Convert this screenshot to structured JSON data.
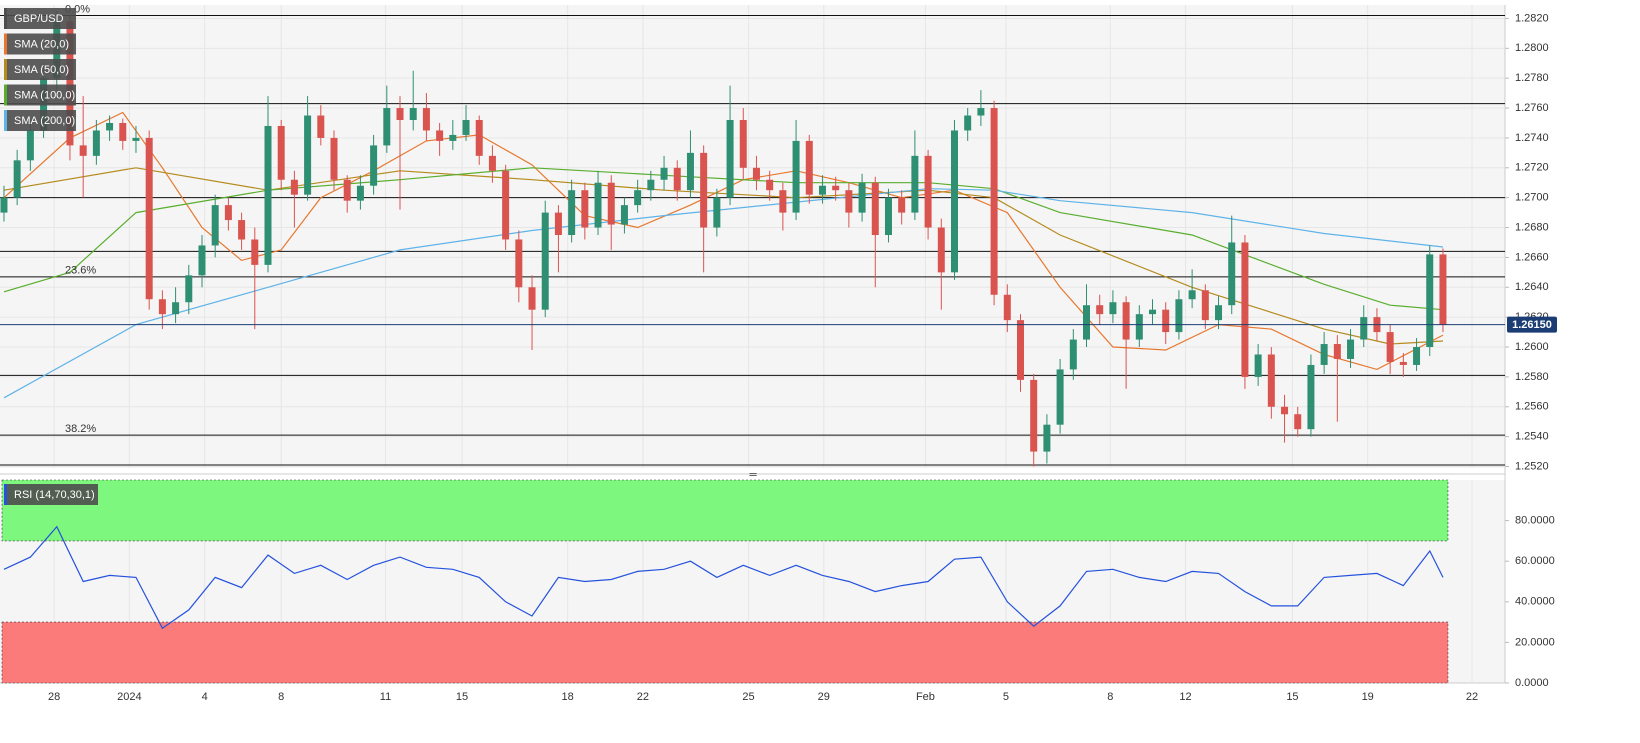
{
  "chart_data": [
    {
      "type": "candlestick",
      "symbol": "GBP/USD",
      "up_color": "#2f8f72",
      "down_color": "#d9534f",
      "xlim": [
        -0.3,
        113.7
      ],
      "xticks": [
        {
          "value": 3.8,
          "label": "28"
        },
        {
          "value": 9.5,
          "label": "2024"
        },
        {
          "value": 15.2,
          "label": "4"
        },
        {
          "value": 21,
          "label": "8"
        },
        {
          "value": 28.9,
          "label": "11"
        },
        {
          "value": 34.7,
          "label": "15"
        },
        {
          "value": 42.7,
          "label": "18"
        },
        {
          "value": 48.4,
          "label": "22"
        },
        {
          "value": 56.4,
          "label": "25"
        },
        {
          "value": 62.1,
          "label": "29"
        },
        {
          "value": 69.8,
          "label": "Feb"
        },
        {
          "value": 75.9,
          "label": "5"
        },
        {
          "value": 83.8,
          "label": "8"
        },
        {
          "value": 89.5,
          "label": "12"
        },
        {
          "value": 97.6,
          "label": "15"
        },
        {
          "value": 103.3,
          "label": "19"
        },
        {
          "value": 111.2,
          "label": "22"
        }
      ],
      "ylim": [
        1.2519,
        1.2829
      ],
      "yticks": [
        {
          "value": 1.252,
          "label": "1.2520"
        },
        {
          "value": 1.254,
          "label": "1.2540"
        },
        {
          "value": 1.256,
          "label": "1.2560"
        },
        {
          "value": 1.258,
          "label": "1.2580"
        },
        {
          "value": 1.26,
          "label": "1.2600"
        },
        {
          "value": 1.262,
          "label": "1.2620"
        },
        {
          "value": 1.264,
          "label": "1.2640"
        },
        {
          "value": 1.266,
          "label": "1.2660"
        },
        {
          "value": 1.268,
          "label": "1.2680"
        },
        {
          "value": 1.27,
          "label": "1.2700"
        },
        {
          "value": 1.272,
          "label": "1.2720"
        },
        {
          "value": 1.274,
          "label": "1.2740"
        },
        {
          "value": 1.276,
          "label": "1.2760"
        },
        {
          "value": 1.278,
          "label": "1.2780"
        },
        {
          "value": 1.28,
          "label": "1.2800"
        },
        {
          "value": 1.282,
          "label": "1.2820"
        }
      ],
      "grid": true,
      "levels": [
        {
          "value": 1.2822,
          "label": "0.0%"
        },
        1.2763,
        1.27,
        1.2664,
        {
          "value": 1.2647,
          "label": "23.6%"
        },
        1.2581,
        {
          "value": 1.2541,
          "label": "38.2%"
        },
        1.2521
      ],
      "last_price": {
        "value": 1.2615,
        "label": "1.26150",
        "color": "#1b3d73"
      },
      "ohlc": [
        [
          1.269,
          1.2708,
          1.2684,
          1.27
        ],
        [
          1.27,
          1.2732,
          1.2695,
          1.2725
        ],
        [
          1.2725,
          1.2752,
          1.2718,
          1.2745
        ],
        [
          1.2745,
          1.279,
          1.274,
          1.278
        ],
        [
          1.278,
          1.2825,
          1.2772,
          1.2818
        ],
        [
          1.2818,
          1.2822,
          1.2725,
          1.2735
        ],
        [
          1.2735,
          1.2768,
          1.27,
          1.2728
        ],
        [
          1.2728,
          1.2752,
          1.2722,
          1.2745
        ],
        [
          1.2745,
          1.2755,
          1.2738,
          1.275
        ],
        [
          1.275,
          1.2753,
          1.2732,
          1.2738
        ],
        [
          1.2738,
          1.2748,
          1.273,
          1.274
        ],
        [
          1.274,
          1.2745,
          1.2625,
          1.2632
        ],
        [
          1.2632,
          1.2638,
          1.2612,
          1.2622
        ],
        [
          1.2622,
          1.264,
          1.2616,
          1.263
        ],
        [
          1.263,
          1.2655,
          1.2622,
          1.2648
        ],
        [
          1.2648,
          1.2675,
          1.264,
          1.2668
        ],
        [
          1.2668,
          1.2702,
          1.266,
          1.2695
        ],
        [
          1.2695,
          1.27,
          1.2678,
          1.2685
        ],
        [
          1.2685,
          1.269,
          1.2665,
          1.2672
        ],
        [
          1.2672,
          1.268,
          1.2612,
          1.2655
        ],
        [
          1.2655,
          1.2768,
          1.265,
          1.2748
        ],
        [
          1.2748,
          1.2752,
          1.2705,
          1.2712
        ],
        [
          1.2712,
          1.2718,
          1.268,
          1.2702
        ],
        [
          1.2702,
          1.2768,
          1.2698,
          1.2755
        ],
        [
          1.2755,
          1.2762,
          1.2735,
          1.274
        ],
        [
          1.274,
          1.2745,
          1.2705,
          1.2712
        ],
        [
          1.2712,
          1.2715,
          1.269,
          1.2698
        ],
        [
          1.2698,
          1.2715,
          1.2692,
          1.2708
        ],
        [
          1.2708,
          1.2742,
          1.2702,
          1.2735
        ],
        [
          1.2735,
          1.2775,
          1.273,
          1.276
        ],
        [
          1.276,
          1.2768,
          1.2692,
          1.2752
        ],
        [
          1.2752,
          1.2785,
          1.2745,
          1.276
        ],
        [
          1.276,
          1.277,
          1.2738,
          1.2745
        ],
        [
          1.2745,
          1.275,
          1.2728,
          1.2738
        ],
        [
          1.2738,
          1.2752,
          1.2732,
          1.2742
        ],
        [
          1.2742,
          1.2762,
          1.2738,
          1.2752
        ],
        [
          1.2752,
          1.2755,
          1.2722,
          1.2728
        ],
        [
          1.2728,
          1.2735,
          1.271,
          1.2718
        ],
        [
          1.2718,
          1.2722,
          1.2665,
          1.2672
        ],
        [
          1.2672,
          1.2678,
          1.263,
          1.264
        ],
        [
          1.264,
          1.2648,
          1.2598,
          1.2625
        ],
        [
          1.2625,
          1.2698,
          1.262,
          1.269
        ],
        [
          1.269,
          1.2695,
          1.265,
          1.2675
        ],
        [
          1.2675,
          1.2712,
          1.267,
          1.2705
        ],
        [
          1.2705,
          1.271,
          1.2672,
          1.268
        ],
        [
          1.268,
          1.2718,
          1.2675,
          1.271
        ],
        [
          1.271,
          1.2715,
          1.2665,
          1.2682
        ],
        [
          1.2682,
          1.27,
          1.2676,
          1.2695
        ],
        [
          1.2695,
          1.2712,
          1.269,
          1.2705
        ],
        [
          1.2705,
          1.2718,
          1.2698,
          1.2712
        ],
        [
          1.2712,
          1.2728,
          1.2705,
          1.272
        ],
        [
          1.272,
          1.2725,
          1.2698,
          1.2705
        ],
        [
          1.2705,
          1.2745,
          1.27,
          1.273
        ],
        [
          1.273,
          1.2735,
          1.265,
          1.268
        ],
        [
          1.268,
          1.2706,
          1.2674,
          1.27
        ],
        [
          1.27,
          1.2775,
          1.2695,
          1.2752
        ],
        [
          1.2752,
          1.276,
          1.2712,
          1.272
        ],
        [
          1.272,
          1.2728,
          1.2705,
          1.2712
        ],
        [
          1.2712,
          1.2718,
          1.2698,
          1.2705
        ],
        [
          1.2705,
          1.271,
          1.2678,
          1.269
        ],
        [
          1.269,
          1.2752,
          1.2685,
          1.2738
        ],
        [
          1.2738,
          1.2742,
          1.2696,
          1.2702
        ],
        [
          1.2702,
          1.2715,
          1.2696,
          1.2708
        ],
        [
          1.2708,
          1.2714,
          1.2698,
          1.2705
        ],
        [
          1.2705,
          1.271,
          1.268,
          1.269
        ],
        [
          1.269,
          1.2716,
          1.2684,
          1.271
        ],
        [
          1.271,
          1.2714,
          1.264,
          1.2675
        ],
        [
          1.2675,
          1.2706,
          1.267,
          1.27
        ],
        [
          1.27,
          1.2705,
          1.2682,
          1.269
        ],
        [
          1.269,
          1.2745,
          1.2685,
          1.2728
        ],
        [
          1.2728,
          1.2732,
          1.2672,
          1.268
        ],
        [
          1.268,
          1.2686,
          1.2625,
          1.265
        ],
        [
          1.265,
          1.2752,
          1.2645,
          1.2745
        ],
        [
          1.2745,
          1.276,
          1.2738,
          1.2755
        ],
        [
          1.2755,
          1.2772,
          1.2748,
          1.276
        ],
        [
          1.276,
          1.2765,
          1.2628,
          1.2635
        ],
        [
          1.2635,
          1.2642,
          1.261,
          1.2618
        ],
        [
          1.2618,
          1.2622,
          1.257,
          1.2578
        ],
        [
          1.2578,
          1.2582,
          1.252,
          1.253
        ],
        [
          1.253,
          1.2555,
          1.2522,
          1.2548
        ],
        [
          1.2548,
          1.2592,
          1.2542,
          1.2585
        ],
        [
          1.2585,
          1.2612,
          1.2578,
          1.2605
        ],
        [
          1.2605,
          1.2642,
          1.26,
          1.2628
        ],
        [
          1.2628,
          1.2635,
          1.2615,
          1.2622
        ],
        [
          1.2622,
          1.2638,
          1.2616,
          1.263
        ],
        [
          1.263,
          1.2634,
          1.2572,
          1.2605
        ],
        [
          1.2605,
          1.2628,
          1.26,
          1.2622
        ],
        [
          1.2622,
          1.2632,
          1.2615,
          1.2625
        ],
        [
          1.2625,
          1.263,
          1.2602,
          1.261
        ],
        [
          1.261,
          1.2638,
          1.2605,
          1.2632
        ],
        [
          1.2632,
          1.2652,
          1.2626,
          1.2638
        ],
        [
          1.2638,
          1.2642,
          1.2612,
          1.2618
        ],
        [
          1.2618,
          1.2634,
          1.2612,
          1.2628
        ],
        [
          1.2628,
          1.2688,
          1.2622,
          1.267
        ],
        [
          1.267,
          1.2675,
          1.2572,
          1.258
        ],
        [
          1.258,
          1.2602,
          1.2574,
          1.2595
        ],
        [
          1.2595,
          1.26,
          1.2552,
          1.256
        ],
        [
          1.256,
          1.2568,
          1.2536,
          1.2555
        ],
        [
          1.2555,
          1.256,
          1.254,
          1.2545
        ],
        [
          1.2545,
          1.2595,
          1.254,
          1.2588
        ],
        [
          1.2588,
          1.261,
          1.2582,
          1.2602
        ],
        [
          1.2602,
          1.2608,
          1.255,
          1.2592
        ],
        [
          1.2592,
          1.2612,
          1.2586,
          1.2605
        ],
        [
          1.2605,
          1.2628,
          1.26,
          1.262
        ],
        [
          1.262,
          1.2626,
          1.2604,
          1.261
        ],
        [
          1.261,
          1.2615,
          1.2582,
          1.259
        ],
        [
          1.259,
          1.2596,
          1.258,
          1.2588
        ],
        [
          1.2588,
          1.2606,
          1.2584,
          1.26
        ],
        [
          1.26,
          1.2668,
          1.2594,
          1.2662
        ],
        [
          1.2662,
          1.2666,
          1.261,
          1.2615
        ]
      ],
      "series": [
        {
          "name": "SMA (20,0)",
          "color": "#e8772e",
          "x": [
            0,
            5,
            9,
            12,
            15,
            18,
            21,
            24,
            28,
            32,
            36,
            40,
            44,
            48,
            52,
            56,
            60,
            64,
            68,
            72,
            76,
            80,
            84,
            88,
            92,
            96,
            100,
            104,
            109
          ],
          "values": [
            1.27,
            1.274,
            1.2757,
            1.272,
            1.268,
            1.2658,
            1.2665,
            1.27,
            1.2718,
            1.2738,
            1.2742,
            1.2722,
            1.2688,
            1.268,
            1.2695,
            1.2712,
            1.2718,
            1.271,
            1.27,
            1.2705,
            1.269,
            1.264,
            1.26,
            1.2598,
            1.2615,
            1.2612,
            1.2595,
            1.2585,
            1.2608
          ]
        },
        {
          "name": "SMA (50,0)",
          "color": "#b58b1e",
          "x": [
            0,
            10,
            20,
            30,
            40,
            50,
            60,
            70,
            75,
            80,
            90,
            100,
            105,
            109
          ],
          "values": [
            1.2705,
            1.272,
            1.2705,
            1.2718,
            1.2712,
            1.2705,
            1.27,
            1.2705,
            1.27,
            1.2675,
            1.264,
            1.2612,
            1.2602,
            1.2604
          ]
        },
        {
          "name": "SMA (100,0)",
          "color": "#5aae2e",
          "x": [
            0,
            5,
            10,
            20,
            30,
            40,
            50,
            60,
            70,
            75,
            80,
            90,
            100,
            105,
            109
          ],
          "values": [
            1.2637,
            1.265,
            1.269,
            1.2705,
            1.2712,
            1.272,
            1.2715,
            1.271,
            1.271,
            1.2706,
            1.269,
            1.2675,
            1.2642,
            1.2628,
            1.2625
          ]
        },
        {
          "name": "SMA (200,0)",
          "color": "#5fb3e8",
          "x": [
            0,
            10,
            20,
            30,
            40,
            50,
            60,
            70,
            75,
            80,
            90,
            100,
            109
          ],
          "values": [
            1.2566,
            1.2615,
            1.264,
            1.2665,
            1.2678,
            1.2688,
            1.2697,
            1.2706,
            1.2705,
            1.2698,
            1.269,
            1.2676,
            1.2667
          ]
        }
      ]
    },
    {
      "type": "line",
      "xlim": [
        -0.3,
        113.7
      ],
      "ylim": [
        0,
        100
      ],
      "yticks": [
        {
          "value": 0,
          "label": "0.0000"
        },
        {
          "value": 20,
          "label": "20.0000"
        },
        {
          "value": 40,
          "label": "40.0000"
        },
        {
          "value": 60,
          "label": "60.0000"
        },
        {
          "value": 80,
          "label": "80.0000"
        }
      ],
      "zones": [
        {
          "from": 70,
          "to": 100,
          "color": "#7df77d"
        },
        {
          "from": 0,
          "to": 30,
          "color": "#fb7b7b"
        }
      ],
      "series": [
        {
          "name": "RSI (14,70,30,1)",
          "color": "#2552dd",
          "x": [
            0,
            2,
            4,
            6,
            8,
            10,
            12,
            14,
            16,
            18,
            20,
            22,
            24,
            26,
            28,
            30,
            32,
            34,
            36,
            38,
            40,
            42,
            44,
            46,
            48,
            50,
            52,
            54,
            56,
            58,
            60,
            62,
            64,
            66,
            68,
            70,
            72,
            74,
            76,
            78,
            80,
            82,
            84,
            86,
            88,
            90,
            92,
            94,
            96,
            98,
            100,
            102,
            104,
            106,
            108,
            109
          ],
          "values": [
            56,
            62,
            77,
            50,
            53,
            52,
            27,
            36,
            52,
            47,
            63,
            54,
            58,
            51,
            58,
            62,
            57,
            56,
            52,
            40,
            33,
            52,
            50,
            51,
            55,
            56,
            60,
            52,
            58,
            53,
            58,
            53,
            50,
            45,
            48,
            50,
            61,
            62,
            40,
            28,
            38,
            55,
            56,
            52,
            50,
            55,
            54,
            45,
            38,
            38,
            52,
            53,
            54,
            48,
            65,
            52
          ]
        }
      ]
    }
  ]
}
